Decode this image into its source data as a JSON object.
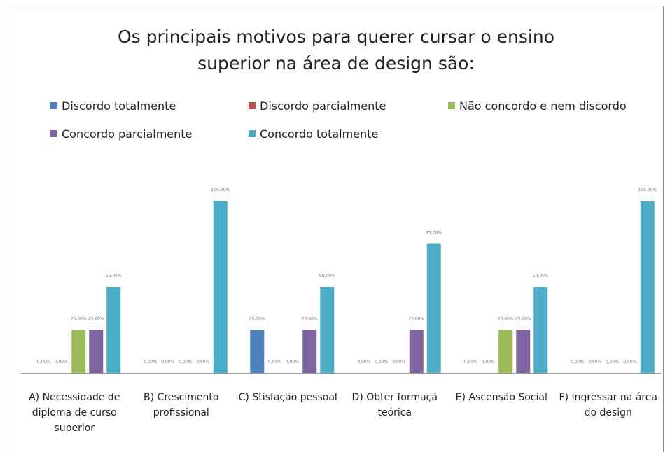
{
  "chart_data": {
    "type": "bar",
    "title": "Os principais motivos para querer cursar o ensino superior na área de design são:",
    "categories": [
      "A) Necessidade de diploma de curso superior",
      "B) Crescimento profissional",
      "C) Stisfação pessoal",
      "D) Obter formaçã teórica",
      "E) Ascensão Social",
      "F) Ingressar na área do design"
    ],
    "series": [
      {
        "name": "Discordo totalmente",
        "color": "#4f81bd",
        "values": [
          0,
          0,
          25,
          0,
          0,
          0
        ],
        "value_labels": [
          "0,00%",
          "0,00%",
          "25,00%",
          "0,00%",
          "0,00%",
          "0,00%"
        ]
      },
      {
        "name": "Discordo parcialmente",
        "color": "#c0504d",
        "values": [
          0,
          0,
          0,
          0,
          0,
          0
        ],
        "value_labels": [
          "0,00%",
          "0,00%",
          "0,00%",
          "0,00%",
          "0,00%",
          "0,00%"
        ]
      },
      {
        "name": "Não concordo e nem discordo",
        "color": "#9bbb59",
        "values": [
          25,
          0,
          0,
          0,
          25,
          0
        ],
        "value_labels": [
          "25,00%",
          "0,00%",
          "0,00%",
          "0,00%",
          "25,00%",
          "0,00%"
        ]
      },
      {
        "name": "Concordo parcialmente",
        "color": "#8064a2",
        "values": [
          25,
          0,
          25,
          25,
          25,
          0
        ],
        "value_labels": [
          "25,00%",
          "0,00%",
          "25,00%",
          "25,00%",
          "25,00%",
          "0,00%"
        ]
      },
      {
        "name": "Concordo totalmente",
        "color": "#4bacc6",
        "values": [
          50,
          100,
          50,
          75,
          50,
          100
        ],
        "value_labels": [
          "50,00%",
          "100,00%",
          "50,00%",
          "75,00%",
          "50,00%",
          "100,00%"
        ]
      }
    ],
    "ylim": [
      0,
      100
    ]
  }
}
